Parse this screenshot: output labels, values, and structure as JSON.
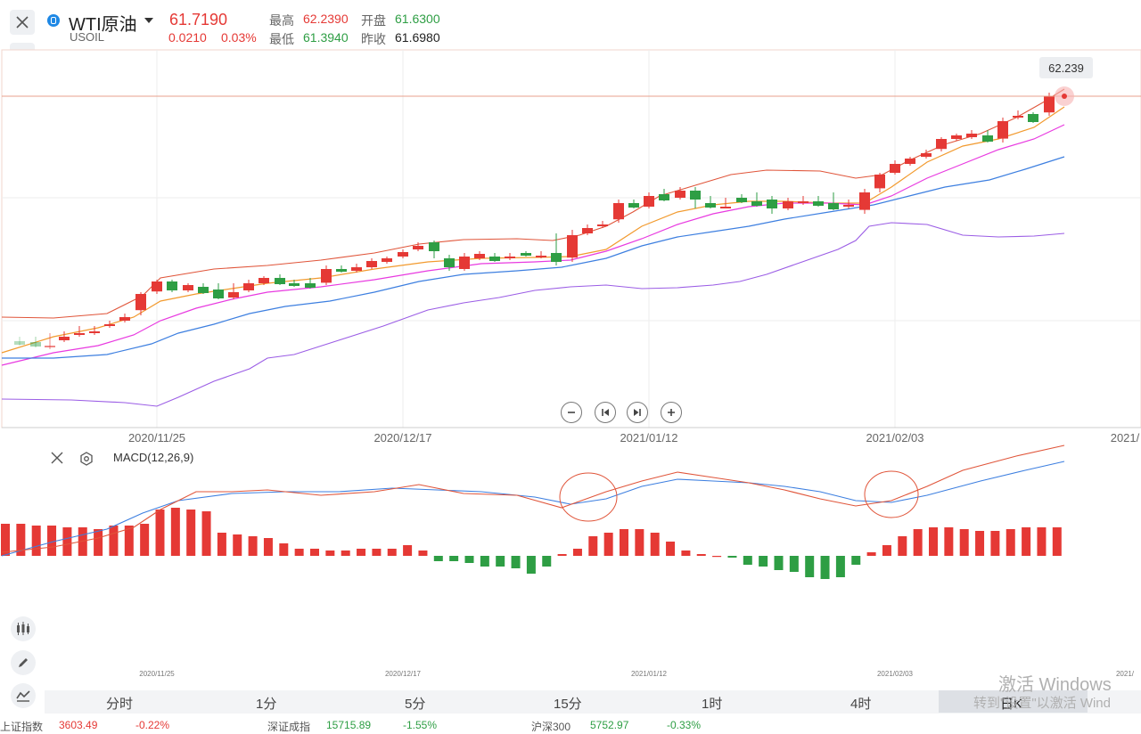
{
  "header": {
    "symbol_name": "WTI原油",
    "symbol_code": "USOIL",
    "last_price": "61.7190",
    "change": "0.0210",
    "change_pct": "0.03%",
    "high_label": "最高",
    "high_value": "62.2390",
    "open_label": "开盘",
    "open_value": "61.6300",
    "low_label": "最低",
    "low_value": "61.3940",
    "prev_close_label": "昨收",
    "prev_close_value": "61.6980"
  },
  "main_chart": {
    "max_marker_label": "62.239",
    "date_axis": [
      "2020/11/25",
      "2020/12/17",
      "2021/01/12",
      "2021/02/03",
      "2021/"
    ]
  },
  "macd": {
    "title": "MACD(12,26,9)",
    "mini_dates": [
      "2020/11/25",
      "2020/12/17",
      "2021/01/12",
      "2021/02/03",
      "2021/"
    ]
  },
  "periods": [
    "分时",
    "1分",
    "5分",
    "15分",
    "1时",
    "4时",
    "日K"
  ],
  "selected_period": "日K",
  "watermark": {
    "line1": "激活 Windows",
    "line2": "转到\"设置\"以激活 Wind"
  },
  "ticker": [
    {
      "name": "上证指数",
      "value": "3603.49",
      "pct": "-0.22%",
      "color": "#e53935"
    },
    {
      "name": "深证成指",
      "value": "15715.89",
      "pct": "-1.55%",
      "color": "#2e9e44"
    },
    {
      "name": "沪深300",
      "value": "5752.97",
      "pct": "-0.33%",
      "color": "#2e9e44"
    }
  ],
  "colors": {
    "up": "#e53935",
    "down": "#2e9e44",
    "ma_orange": "#f29a2e",
    "ma_magenta": "#e83ae0",
    "ma_blue": "#3d7fe0",
    "ma_purple": "#9b5de5",
    "boll_red": "#e0553a"
  }
}
